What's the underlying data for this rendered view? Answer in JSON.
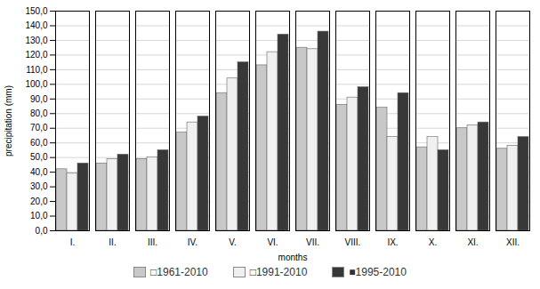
{
  "chart_data": {
    "type": "bar",
    "categories": [
      "I.",
      "II.",
      "III.",
      "IV.",
      "V.",
      "VI.",
      "VII.",
      "VIII.",
      "IX.",
      "X.",
      "XI.",
      "XII."
    ],
    "series": [
      {
        "name": "□1961-2010",
        "color": "#c8c8c8",
        "values": [
          42,
          46,
          49,
          67,
          94,
          113,
          125,
          86,
          84,
          57,
          70,
          56
        ]
      },
      {
        "name": "□1991-2010",
        "color": "#f0f0f0",
        "values": [
          39,
          49,
          50,
          74,
          104,
          122,
          124,
          91,
          64,
          64,
          72,
          58
        ]
      },
      {
        "name": "■1995-2010",
        "color": "#383838",
        "values": [
          46,
          52,
          55,
          78,
          115,
          134,
          136,
          98,
          94,
          55,
          74,
          64
        ]
      }
    ],
    "xlabel": "months",
    "ylabel": "precipitation (mm)",
    "ylim": [
      0,
      150
    ],
    "yticks": [
      {
        "value": 0,
        "label": "0,0"
      },
      {
        "value": 10,
        "label": "10,0"
      },
      {
        "value": 20,
        "label": "20,0"
      },
      {
        "value": 30,
        "label": "30,0"
      },
      {
        "value": 40,
        "label": "40,0"
      },
      {
        "value": 50,
        "label": "50,0"
      },
      {
        "value": 60,
        "label": "60,0"
      },
      {
        "value": 70,
        "label": "70,0"
      },
      {
        "value": 80,
        "label": "80,0"
      },
      {
        "value": 90,
        "label": "90,0"
      },
      {
        "value": 100,
        "label": "100,0"
      },
      {
        "value": 110,
        "label": "110,0"
      },
      {
        "value": 120,
        "label": "120,0"
      },
      {
        "value": 130,
        "label": "130,0"
      },
      {
        "value": 140,
        "label": "140,0"
      },
      {
        "value": 150,
        "label": "150,0"
      }
    ],
    "grid": true,
    "legend": "bottom"
  }
}
